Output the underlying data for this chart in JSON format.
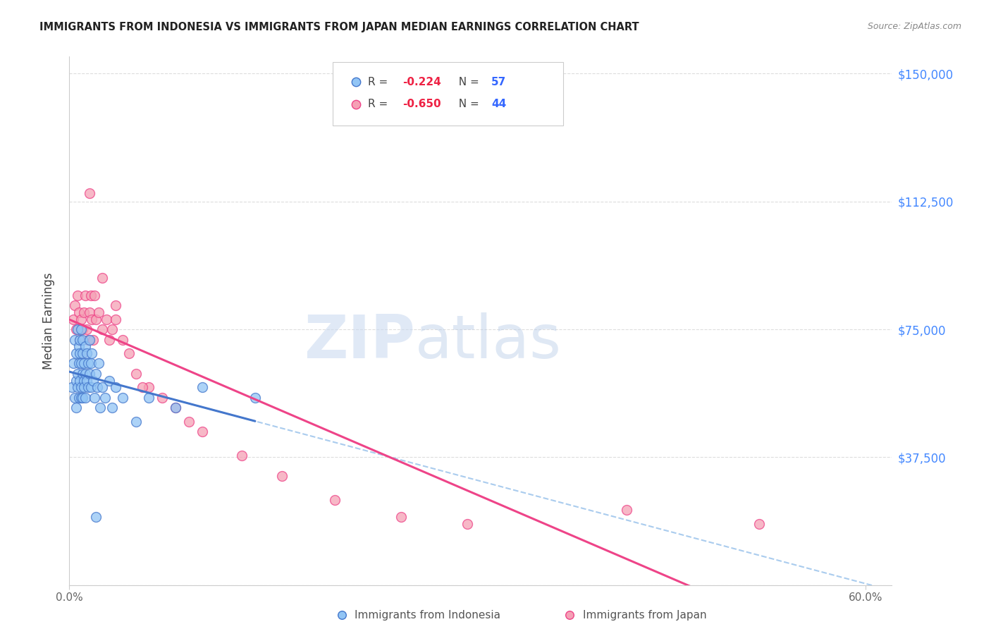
{
  "title": "IMMIGRANTS FROM INDONESIA VS IMMIGRANTS FROM JAPAN MEDIAN EARNINGS CORRELATION CHART",
  "source": "Source: ZipAtlas.com",
  "ylabel": "Median Earnings",
  "xlim": [
    0.0,
    0.62
  ],
  "ylim": [
    0,
    155000
  ],
  "yticks": [
    0,
    37500,
    75000,
    112500,
    150000
  ],
  "ytick_labels": [
    "",
    "$37,500",
    "$75,000",
    "$112,500",
    "$150,000"
  ],
  "xticks": [
    0.0,
    0.6
  ],
  "xtick_labels": [
    "0.0%",
    "60.0%"
  ],
  "legend_r1": "-0.224",
  "legend_n1": "57",
  "legend_r2": "-0.650",
  "legend_n2": "44",
  "color_indonesia": "#92C5F5",
  "color_japan": "#F5A0B5",
  "color_regression_indonesia": "#4477CC",
  "color_regression_japan": "#EE4488",
  "color_regression_dashed": "#AACCEE",
  "watermark_zip": "ZIP",
  "watermark_atlas": "atlas",
  "indonesia_x": [
    0.002,
    0.003,
    0.004,
    0.004,
    0.005,
    0.005,
    0.005,
    0.006,
    0.006,
    0.006,
    0.007,
    0.007,
    0.007,
    0.008,
    0.008,
    0.008,
    0.009,
    0.009,
    0.009,
    0.009,
    0.01,
    0.01,
    0.01,
    0.01,
    0.011,
    0.011,
    0.011,
    0.012,
    0.012,
    0.012,
    0.013,
    0.013,
    0.014,
    0.014,
    0.015,
    0.015,
    0.016,
    0.016,
    0.017,
    0.018,
    0.019,
    0.02,
    0.021,
    0.022,
    0.023,
    0.025,
    0.027,
    0.03,
    0.032,
    0.035,
    0.04,
    0.05,
    0.06,
    0.08,
    0.1,
    0.14,
    0.02
  ],
  "indonesia_y": [
    58000,
    65000,
    55000,
    72000,
    60000,
    68000,
    52000,
    75000,
    62000,
    58000,
    70000,
    65000,
    55000,
    68000,
    72000,
    60000,
    65000,
    58000,
    55000,
    75000,
    62000,
    68000,
    55000,
    72000,
    65000,
    60000,
    58000,
    70000,
    62000,
    55000,
    68000,
    60000,
    65000,
    58000,
    72000,
    62000,
    65000,
    58000,
    68000,
    60000,
    55000,
    62000,
    58000,
    65000,
    52000,
    58000,
    55000,
    60000,
    52000,
    58000,
    55000,
    48000,
    55000,
    52000,
    58000,
    55000,
    20000
  ],
  "japan_x": [
    0.003,
    0.004,
    0.005,
    0.006,
    0.007,
    0.008,
    0.009,
    0.01,
    0.01,
    0.011,
    0.012,
    0.013,
    0.014,
    0.015,
    0.016,
    0.017,
    0.018,
    0.019,
    0.02,
    0.022,
    0.025,
    0.028,
    0.03,
    0.032,
    0.035,
    0.04,
    0.045,
    0.05,
    0.06,
    0.07,
    0.08,
    0.09,
    0.1,
    0.13,
    0.16,
    0.2,
    0.25,
    0.3,
    0.42,
    0.52,
    0.015,
    0.025,
    0.035,
    0.055
  ],
  "japan_y": [
    78000,
    82000,
    75000,
    85000,
    80000,
    72000,
    78000,
    75000,
    68000,
    80000,
    85000,
    75000,
    72000,
    80000,
    85000,
    78000,
    72000,
    85000,
    78000,
    80000,
    75000,
    78000,
    72000,
    75000,
    78000,
    72000,
    68000,
    62000,
    58000,
    55000,
    52000,
    48000,
    45000,
    38000,
    32000,
    25000,
    20000,
    18000,
    22000,
    18000,
    115000,
    90000,
    82000,
    58000
  ]
}
